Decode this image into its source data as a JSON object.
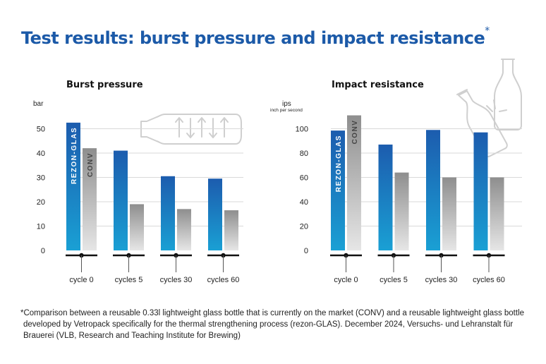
{
  "page": {
    "title": "Test results: burst pressure and impact resistance",
    "title_mark": "*",
    "footnote": "*Comparison between a reusable 0.33l lightweight glass bottle that is currently on the market (CONV) and a reusable lightweight glass bottle developed by Vetropack specifically for the thermal strengthening process (rezon-GLAS). December 2024, Versuchs- und Lehranstalt für Brauerei (VLB, Research and Teaching Institute for Brewing)"
  },
  "colors": {
    "title": "#1c5aa8",
    "rezon_top": "#1c5cae",
    "rezon_bottom": "#1aa0d4",
    "conv_top": "#8e8e8e",
    "conv_bottom": "#e6e6e6",
    "grid": "#d9d9d9",
    "icon": "#cfcfcf"
  },
  "chart_data": [
    {
      "type": "bar",
      "title": "Burst pressure",
      "ylabel": "bar",
      "ylabel_sub": "",
      "ylim": [
        0,
        60
      ],
      "yticks": [
        0,
        10,
        20,
        30,
        40,
        50
      ],
      "grid": true,
      "categories": [
        "cycle 0",
        "cycles 5",
        "cycles 30",
        "cycles 60"
      ],
      "series": [
        {
          "name": "REZON-GLAS",
          "values": [
            52.5,
            41,
            30.5,
            29.5
          ]
        },
        {
          "name": "CONV",
          "values": [
            42,
            19,
            17,
            16.5
          ]
        }
      ],
      "icon": "bottle-pressure-icon"
    },
    {
      "type": "bar",
      "title": "Impact resistance",
      "ylabel": "ips",
      "ylabel_sub": "inch per second",
      "ylim": [
        0,
        120
      ],
      "yticks": [
        0,
        20,
        40,
        60,
        80,
        100
      ],
      "grid": true,
      "categories": [
        "cycle 0",
        "cycles 5",
        "cycles 30",
        "cycles 60"
      ],
      "series": [
        {
          "name": "REZON-GLAS",
          "values": [
            98.5,
            87,
            99,
            97
          ]
        },
        {
          "name": "CONV",
          "values": [
            111,
            64,
            60,
            60
          ]
        }
      ],
      "icon": "bottle-impact-icon"
    }
  ]
}
